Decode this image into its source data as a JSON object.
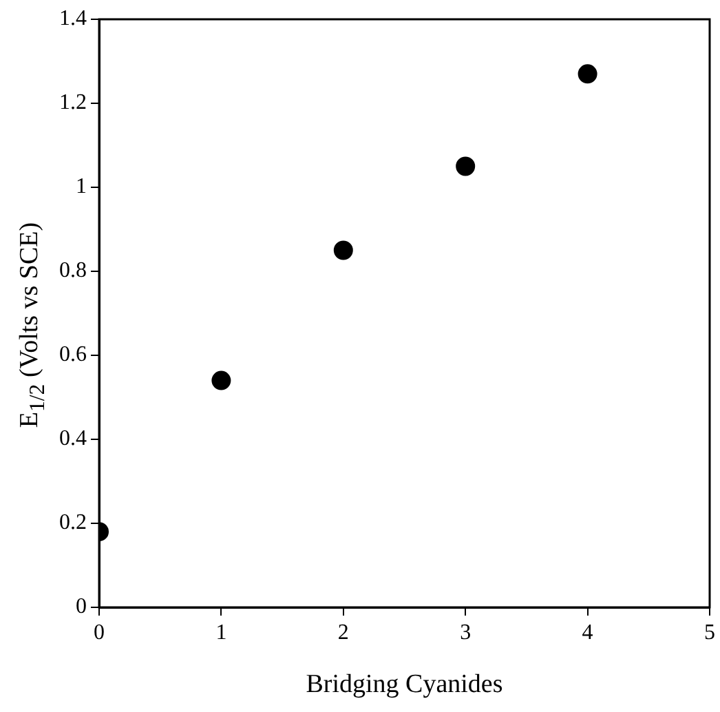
{
  "chart_data": {
    "type": "scatter",
    "xlabel": "Bridging Cyanides",
    "ylabel": "E$_{1/2}$ (Volts vs SCE)",
    "x": [
      0,
      1,
      2,
      3,
      4
    ],
    "series": [
      {
        "color": "#000000",
        "values": [
          0.18,
          0.54,
          0.85,
          1.05,
          1.27
        ]
      }
    ],
    "xlim": [
      0,
      5
    ],
    "xticks": [
      0,
      1,
      2,
      3,
      4,
      5
    ],
    "ylim": [
      0,
      1.4
    ],
    "yticks": [
      0,
      0.2,
      0.4,
      0.6,
      0.8,
      1,
      1.2,
      1.4
    ],
    "marker": "circle",
    "legend": false
  }
}
